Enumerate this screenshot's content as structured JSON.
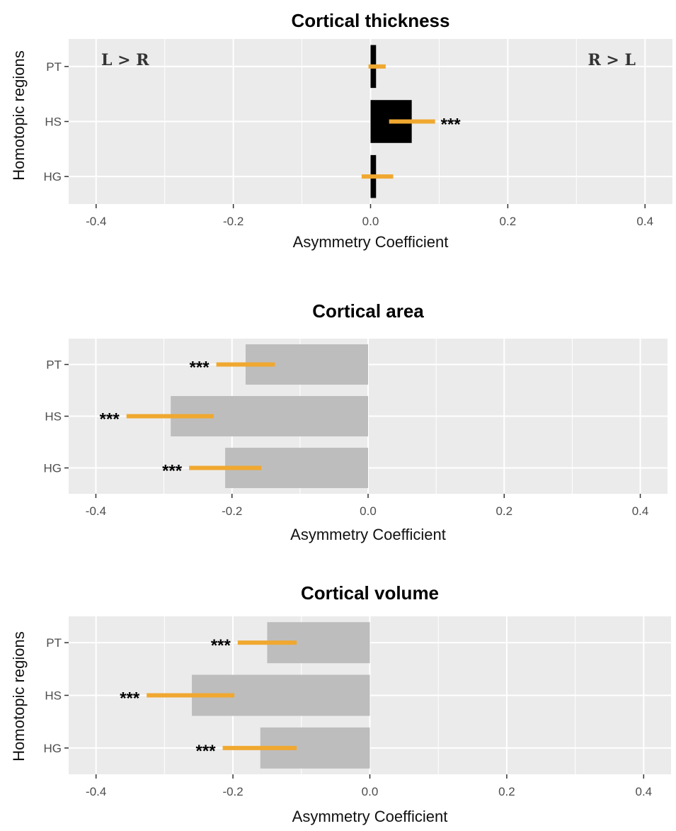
{
  "chart_data": [
    {
      "type": "bar",
      "orientation": "horizontal",
      "title": "Cortical thickness",
      "xlabel": "Asymmetry Coefficient",
      "ylabel": "Homotopic regions",
      "xlim": [
        -0.44,
        0.44
      ],
      "x_ticks": [
        -0.4,
        -0.2,
        0.0,
        0.2,
        0.4
      ],
      "x_tick_labels": [
        "-0.4",
        "-0.2",
        "0.0",
        "0.2",
        "0.4"
      ],
      "categories": [
        "PT",
        "HS",
        "HG"
      ],
      "values": [
        0.008,
        0.06,
        0.008
      ],
      "error_low": [
        -0.003,
        0.027,
        -0.013
      ],
      "error_high": [
        0.022,
        0.094,
        0.033
      ],
      "significance": [
        "",
        "***",
        ""
      ],
      "annotations": [
        "L > R",
        "R > L"
      ],
      "bar_color": "#000000",
      "error_color": "#f0a830",
      "grid": true,
      "background": "#ebebeb"
    },
    {
      "type": "bar",
      "orientation": "horizontal",
      "title": "Cortical area",
      "xlabel": "Asymmetry Coefficient",
      "ylabel": "",
      "xlim": [
        -0.44,
        0.44
      ],
      "x_ticks": [
        -0.4,
        -0.2,
        0.0,
        0.2,
        0.4
      ],
      "x_tick_labels": [
        "-0.4",
        "-0.2",
        "0.0",
        "0.2",
        "0.4"
      ],
      "categories": [
        "PT",
        "HS",
        "HG"
      ],
      "values": [
        -0.18,
        -0.29,
        -0.21
      ],
      "error_low": [
        -0.223,
        -0.355,
        -0.263
      ],
      "error_high": [
        -0.137,
        -0.227,
        -0.157
      ],
      "significance": [
        "***",
        "***",
        "***"
      ],
      "annotations": [],
      "bar_color": "#bdbdbd",
      "error_color": "#f0a830",
      "grid": true,
      "background": "#ebebeb"
    },
    {
      "type": "bar",
      "orientation": "horizontal",
      "title": "Cortical volume",
      "xlabel": "Asymmetry Coefficient",
      "ylabel": "Homotopic regions",
      "xlim": [
        -0.44,
        0.44
      ],
      "x_ticks": [
        -0.4,
        -0.2,
        0.0,
        0.2,
        0.4
      ],
      "x_tick_labels": [
        "-0.4",
        "-0.2",
        "0.0",
        "0.2",
        "0.4"
      ],
      "categories": [
        "PT",
        "HS",
        "HG"
      ],
      "values": [
        -0.15,
        -0.26,
        -0.16
      ],
      "error_low": [
        -0.193,
        -0.326,
        -0.215
      ],
      "error_high": [
        -0.107,
        -0.198,
        -0.107
      ],
      "significance": [
        "***",
        "***",
        "***"
      ],
      "annotations": [],
      "bar_color": "#bdbdbd",
      "error_color": "#f0a830",
      "grid": true,
      "background": "#ebebeb"
    }
  ]
}
